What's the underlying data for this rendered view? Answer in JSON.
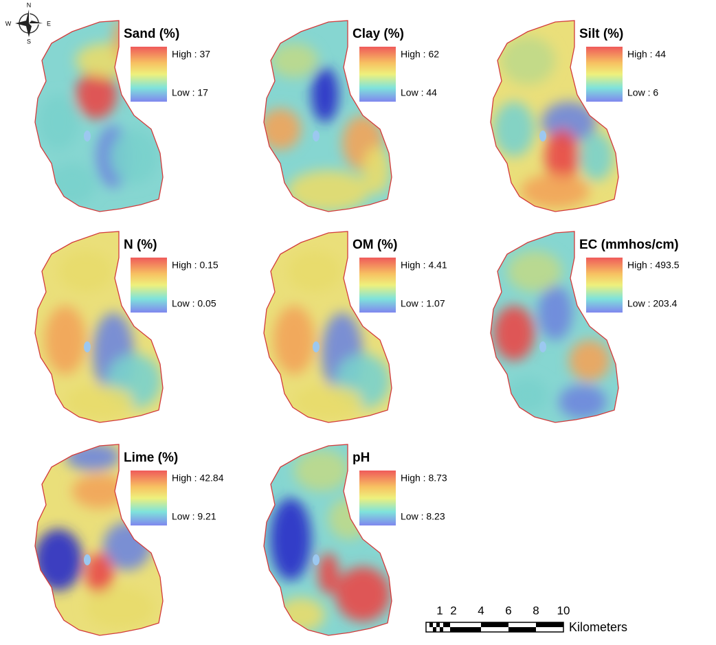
{
  "compass": {
    "n": "N",
    "e": "E",
    "s": "S",
    "w": "W"
  },
  "panels": [
    {
      "title": "Sand  (%)",
      "high": "High : 37",
      "low": "Low : 17"
    },
    {
      "title": "Clay (%)",
      "high": "High : 62",
      "low": "Low : 44"
    },
    {
      "title": "Silt (%)",
      "high": "High : 44",
      "low": "Low : 6"
    },
    {
      "title": "N  (%)",
      "high": "High : 0.15",
      "low": "Low : 0.05"
    },
    {
      "title": "OM (%)",
      "high": "High : 4.41",
      "low": "Low : 1.07"
    },
    {
      "title": "EC (mmhos/cm)",
      "high": "High : 493.5",
      "low": "Low : 203.4"
    },
    {
      "title": "Lime  (%)",
      "high": "High : 42.84",
      "low": "Low : 9.21"
    },
    {
      "title": "pH",
      "high": "High : 8.73",
      "low": "Low : 8.23"
    }
  ],
  "scale_bar": {
    "ticks": [
      1,
      2,
      4,
      6,
      8,
      10
    ],
    "unit": "Kilometers"
  }
}
